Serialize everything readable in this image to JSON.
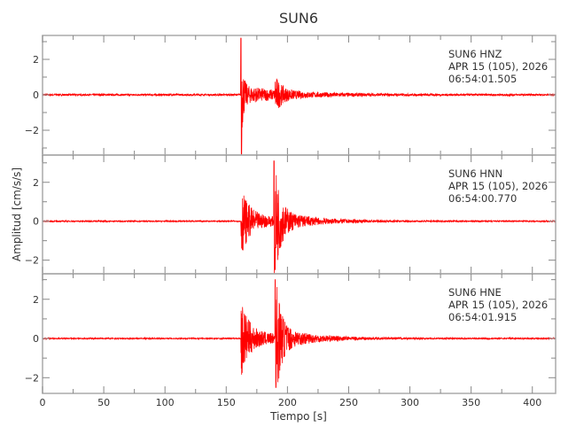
{
  "chart_data": {
    "type": "line",
    "title": "SUN6",
    "xlabel": "Tiempo [s]",
    "ylabel": "Amplitud [cm/s/s]",
    "xlim": [
      0,
      419
    ],
    "xticks": [
      0,
      50,
      100,
      150,
      200,
      250,
      300,
      350,
      400
    ],
    "grid": false,
    "line_color": "#ff0000",
    "panels": [
      {
        "station": "SUN6",
        "channel": "HNZ",
        "date": "APR 15 (105), 2026",
        "time": "06:54:01.505",
        "ylim": [
          -3.4,
          3.35
        ],
        "yticks": [
          -2,
          0,
          2
        ],
        "p_arrival_s": 162,
        "s_arrival_s": 190,
        "peak_max": 3.2,
        "peak_min": -3.4,
        "secondary_amp": 0.9,
        "noise_amp": 0.05
      },
      {
        "station": "SUN6",
        "channel": "HNN",
        "date": "APR 15 (105), 2026",
        "time": "06:54:00.770",
        "ylim": [
          -2.7,
          3.4
        ],
        "yticks": [
          -2,
          0,
          2
        ],
        "p_arrival_s": 162,
        "s_arrival_s": 189,
        "peak_max": 3.1,
        "peak_min": -2.4,
        "primary_amp": 1.5,
        "noise_amp": 0.03
      },
      {
        "station": "SUN6",
        "channel": "HNE",
        "date": "APR 15 (105), 2026",
        "time": "06:54:01.915",
        "ylim": [
          -2.8,
          3.3
        ],
        "yticks": [
          -2,
          0,
          2
        ],
        "p_arrival_s": 162,
        "s_arrival_s": 190,
        "peak_max": 3.0,
        "peak_min": -2.5,
        "primary_amp": 1.7,
        "noise_amp": 0.03
      }
    ]
  }
}
